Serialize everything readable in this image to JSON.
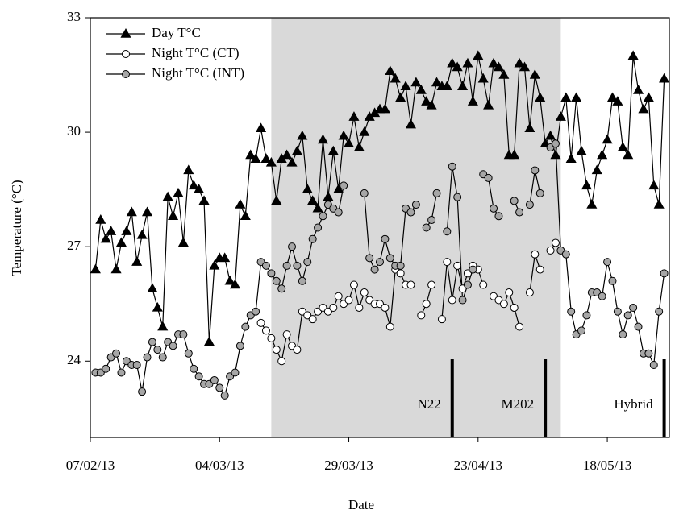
{
  "chart_data": {
    "type": "line",
    "x_label": "Date",
    "y_label": "Temperature (°C)",
    "xlim": [
      "2013-02-07",
      "2013-05-30"
    ],
    "xticks": [
      {
        "value": "2013-02-07",
        "label": "07/02/13"
      },
      {
        "value": "2013-03-04",
        "label": "04/03/13"
      },
      {
        "value": "2013-03-29",
        "label": "29/03/13"
      },
      {
        "value": "2013-04-23",
        "label": "23/04/13"
      },
      {
        "value": "2013-05-18",
        "label": "18/05/13"
      }
    ],
    "ylim": [
      22,
      33
    ],
    "yticks": [
      24,
      27,
      30,
      33
    ],
    "legend": "top-left",
    "shaded_span": [
      "2013-03-14",
      "2013-05-09"
    ],
    "shade_color": "#d9d9d9",
    "annotations": [
      {
        "text": "N22",
        "x": "2013-04-18"
      },
      {
        "text": "M202",
        "x": "2013-05-06"
      },
      {
        "text": "Hybrid",
        "x": "2013-05-29"
      }
    ],
    "x": [
      "2013-02-08",
      "2013-02-09",
      "2013-02-10",
      "2013-02-11",
      "2013-02-12",
      "2013-02-13",
      "2013-02-14",
      "2013-02-15",
      "2013-02-16",
      "2013-02-17",
      "2013-02-18",
      "2013-02-19",
      "2013-02-20",
      "2013-02-21",
      "2013-02-22",
      "2013-02-23",
      "2013-02-24",
      "2013-02-25",
      "2013-02-26",
      "2013-02-27",
      "2013-02-28",
      "2013-03-01",
      "2013-03-02",
      "2013-03-03",
      "2013-03-04",
      "2013-03-05",
      "2013-03-06",
      "2013-03-07",
      "2013-03-08",
      "2013-03-09",
      "2013-03-10",
      "2013-03-11",
      "2013-03-12",
      "2013-03-13",
      "2013-03-14",
      "2013-03-15",
      "2013-03-16",
      "2013-03-17",
      "2013-03-18",
      "2013-03-19",
      "2013-03-20",
      "2013-03-21",
      "2013-03-22",
      "2013-03-23",
      "2013-03-24",
      "2013-03-25",
      "2013-03-26",
      "2013-03-27",
      "2013-03-28",
      "2013-03-29",
      "2013-03-30",
      "2013-03-31",
      "2013-04-01",
      "2013-04-02",
      "2013-04-03",
      "2013-04-04",
      "2013-04-05",
      "2013-04-06",
      "2013-04-07",
      "2013-04-08",
      "2013-04-09",
      "2013-04-10",
      "2013-04-11",
      "2013-04-12",
      "2013-04-13",
      "2013-04-14",
      "2013-04-15",
      "2013-04-16",
      "2013-04-17",
      "2013-04-18",
      "2013-04-19",
      "2013-04-20",
      "2013-04-21",
      "2013-04-22",
      "2013-04-23",
      "2013-04-24",
      "2013-04-25",
      "2013-04-26",
      "2013-04-27",
      "2013-04-28",
      "2013-04-29",
      "2013-04-30",
      "2013-05-01",
      "2013-05-02",
      "2013-05-03",
      "2013-05-04",
      "2013-05-05",
      "2013-05-06",
      "2013-05-07",
      "2013-05-08",
      "2013-05-09",
      "2013-05-10",
      "2013-05-11",
      "2013-05-12",
      "2013-05-13",
      "2013-05-14",
      "2013-05-15",
      "2013-05-16",
      "2013-05-17",
      "2013-05-18",
      "2013-05-19",
      "2013-05-20",
      "2013-05-21",
      "2013-05-22",
      "2013-05-23",
      "2013-05-24",
      "2013-05-25",
      "2013-05-26",
      "2013-05-27",
      "2013-05-28",
      "2013-05-29"
    ],
    "series": [
      {
        "name": "Day T°C",
        "color": "#000000",
        "marker": "triangle",
        "marker_fill": "#000000",
        "values": [
          26.4,
          27.7,
          27.2,
          27.4,
          26.4,
          27.1,
          27.4,
          27.9,
          26.6,
          27.3,
          27.9,
          25.9,
          25.4,
          24.9,
          28.3,
          27.8,
          28.4,
          27.1,
          29.0,
          28.6,
          28.5,
          28.2,
          24.5,
          26.5,
          26.7,
          26.7,
          26.1,
          26.0,
          28.1,
          27.8,
          29.4,
          29.3,
          30.1,
          29.3,
          29.2,
          28.2,
          29.3,
          29.4,
          29.2,
          29.5,
          29.9,
          28.5,
          28.2,
          28.0,
          29.8,
          28.3,
          29.5,
          28.5,
          29.9,
          29.7,
          30.4,
          29.6,
          30.0,
          30.4,
          30.5,
          30.6,
          30.6,
          31.6,
          31.4,
          30.9,
          31.2,
          30.2,
          31.3,
          31.1,
          30.8,
          30.7,
          31.3,
          31.2,
          31.2,
          31.8,
          31.7,
          31.2,
          31.8,
          30.8,
          32.0,
          31.4,
          30.7,
          31.8,
          31.7,
          31.5,
          29.4,
          29.4,
          31.8,
          31.7,
          30.1,
          31.5,
          30.9,
          29.7,
          29.9,
          29.4,
          30.4,
          30.9,
          29.3,
          30.9,
          29.5,
          28.6,
          28.1,
          29.0,
          29.4,
          29.8,
          30.9,
          30.8,
          29.6,
          29.4,
          32.0,
          31.1,
          30.6,
          30.9,
          28.6,
          28.1,
          31.4
        ]
      },
      {
        "name": "Night T°C (CT)",
        "color": "#000000",
        "marker": "circle",
        "marker_fill": "#ffffff",
        "values": [
          null,
          null,
          null,
          null,
          null,
          null,
          null,
          null,
          null,
          null,
          null,
          null,
          null,
          null,
          null,
          null,
          null,
          null,
          null,
          null,
          null,
          null,
          null,
          null,
          null,
          null,
          null,
          null,
          null,
          null,
          null,
          null,
          25.0,
          24.8,
          24.6,
          24.3,
          24.0,
          24.7,
          24.4,
          24.3,
          25.3,
          25.2,
          25.1,
          25.3,
          25.4,
          25.3,
          25.4,
          25.7,
          25.5,
          25.6,
          26.0,
          25.4,
          25.8,
          25.6,
          25.5,
          25.5,
          25.4,
          24.9,
          26.4,
          26.3,
          26.0,
          26.0,
          null,
          25.2,
          25.5,
          26.0,
          null,
          25.1,
          26.6,
          25.6,
          26.5,
          25.9,
          26.3,
          26.5,
          26.4,
          26.0,
          null,
          25.7,
          25.6,
          25.5,
          25.8,
          25.4,
          24.9,
          null,
          25.8,
          26.8,
          26.4,
          null,
          26.9,
          27.1,
          null,
          null,
          null,
          null,
          null,
          null,
          null,
          null,
          null,
          null,
          null,
          null,
          null,
          null,
          null,
          null,
          null,
          null,
          null,
          null,
          null
        ]
      },
      {
        "name": "Night T°C (INT)",
        "color": "#000000",
        "marker": "circle",
        "marker_fill": "#a6a6a6",
        "values": [
          23.7,
          23.7,
          23.8,
          24.1,
          24.2,
          23.7,
          24.0,
          23.9,
          23.9,
          23.2,
          24.1,
          24.5,
          24.3,
          24.1,
          24.5,
          24.4,
          24.7,
          24.7,
          24.2,
          23.8,
          23.6,
          23.4,
          23.4,
          23.5,
          23.3,
          23.1,
          23.6,
          23.7,
          24.4,
          24.9,
          25.2,
          25.3,
          26.6,
          26.5,
          26.3,
          26.1,
          25.9,
          26.5,
          27.0,
          26.5,
          26.1,
          26.6,
          27.2,
          27.5,
          27.8,
          28.1,
          28.0,
          27.9,
          28.6,
          null,
          null,
          null,
          28.4,
          26.7,
          26.4,
          26.6,
          27.2,
          26.7,
          26.5,
          26.5,
          28.0,
          27.9,
          28.1,
          null,
          27.5,
          27.7,
          28.4,
          null,
          27.4,
          29.1,
          28.3,
          25.6,
          26.0,
          26.4,
          null,
          28.9,
          28.8,
          28.0,
          27.8,
          null,
          null,
          28.2,
          27.9,
          null,
          28.1,
          29.0,
          28.4,
          null,
          29.6,
          29.7,
          26.9,
          26.8,
          25.3,
          24.7,
          24.8,
          25.2,
          25.8,
          25.8,
          25.7,
          26.6,
          26.1,
          25.3,
          24.7,
          25.2,
          25.4,
          24.9,
          24.2,
          24.2,
          23.9,
          25.3,
          26.3
        ]
      }
    ]
  }
}
